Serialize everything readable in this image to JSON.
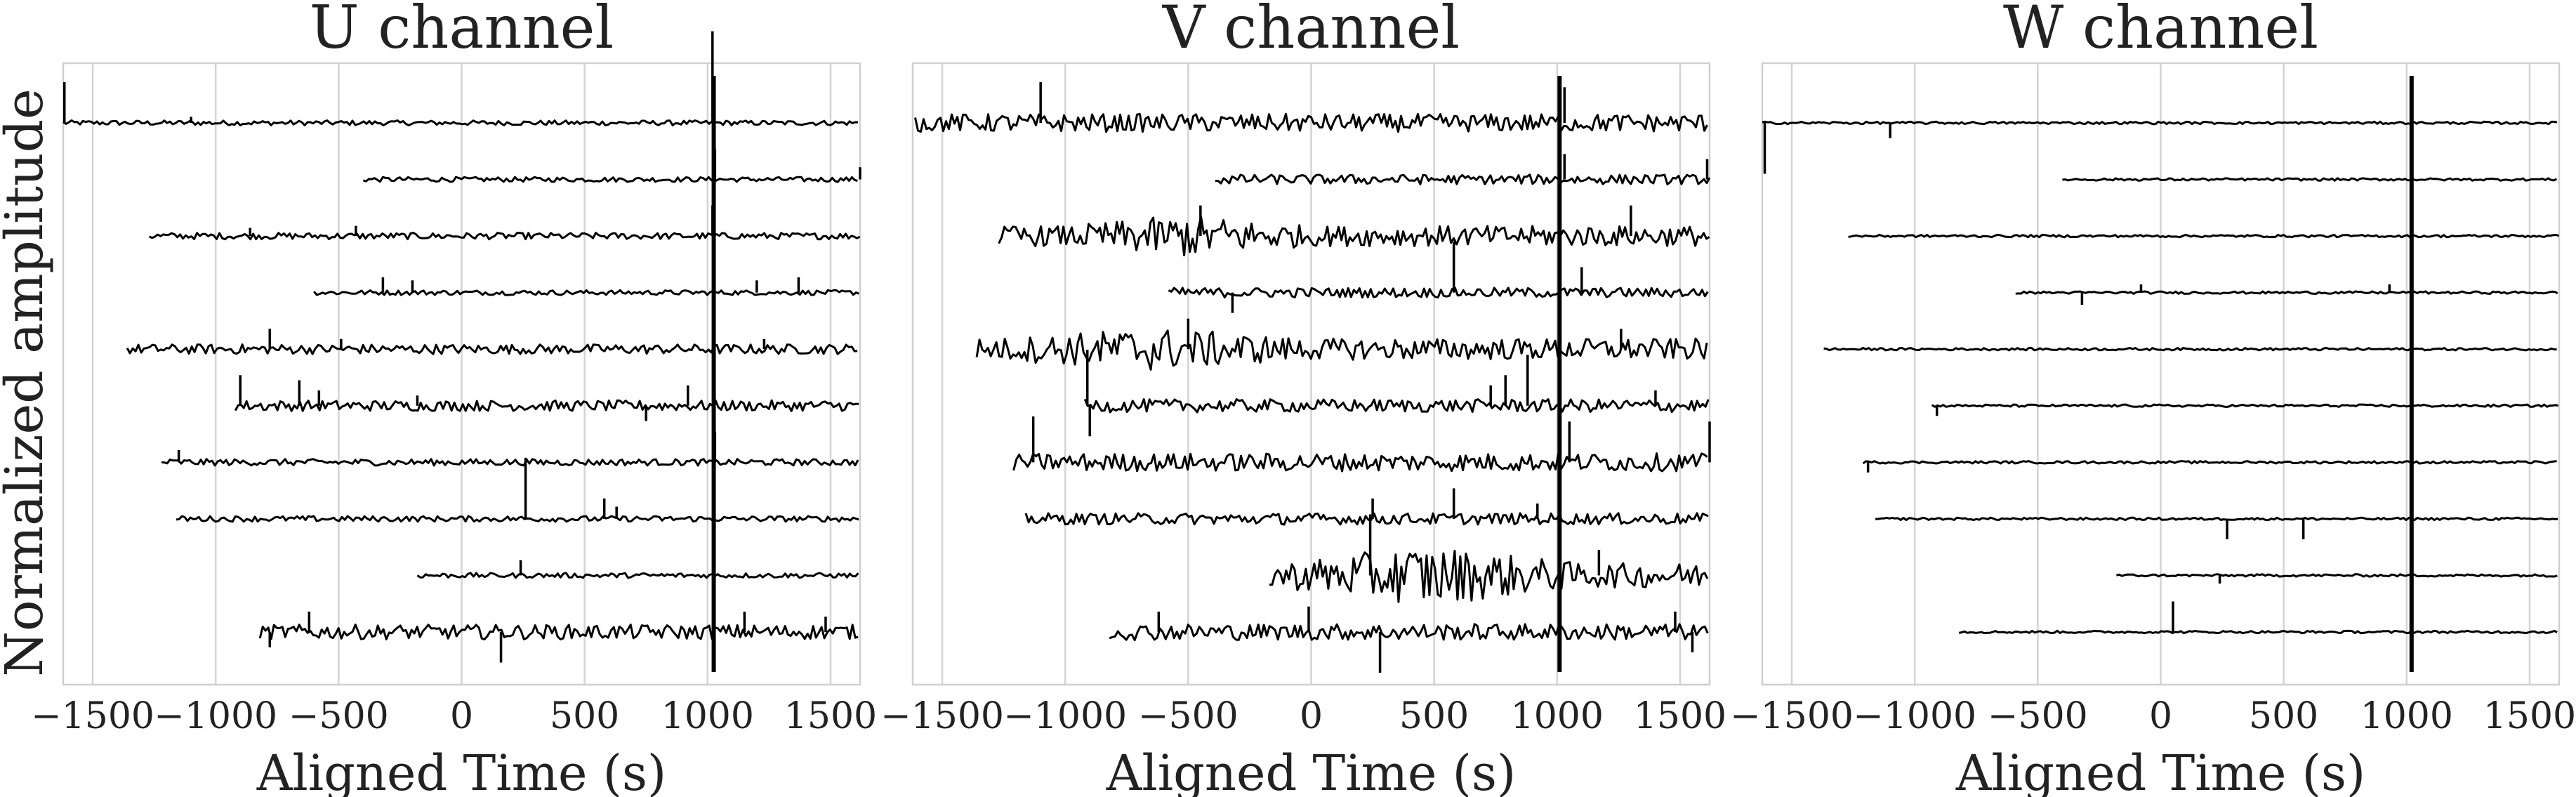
{
  "figure": {
    "ylabel": "Normalized amplitude",
    "colors": {
      "trace": "#000000",
      "grid": "#d3d3d3",
      "frame": "#cfcfcf",
      "text": "#222222"
    }
  },
  "chart_data": [
    {
      "type": "line",
      "title": "U channel",
      "xlabel": "Aligned Time (s)",
      "ylabel": "Normalized amplitude",
      "xlim": [
        -1620,
        1620
      ],
      "xticks": [
        -1500,
        -1000,
        -500,
        0,
        500,
        1000,
        1500
      ],
      "xtick_labels": [
        "−1500",
        "−1000",
        "−500",
        "0",
        "500",
        "1000",
        "1500"
      ],
      "grid": true,
      "n_traces": 10,
      "noise": 0.03,
      "traces": [
        {
          "start": -1620,
          "end": 1620,
          "noise": 0.6,
          "spikes": [
            [
              -1615,
              4
            ],
            [
              -1100,
              0.6
            ],
            [
              1020,
              9
            ]
          ]
        },
        {
          "start": -400,
          "end": 1620,
          "noise": 0.6,
          "spikes": [
            [
              1030,
              3
            ],
            [
              1620,
              1.2
            ]
          ]
        },
        {
          "start": -1270,
          "end": 1620,
          "noise": 0.8,
          "spikes": [
            [
              -860,
              0.8
            ],
            [
              -430,
              1
            ],
            [
              1020,
              3
            ]
          ]
        },
        {
          "start": -600,
          "end": 1620,
          "noise": 0.6,
          "spikes": [
            [
              -320,
              1.5
            ],
            [
              -200,
              1.2
            ],
            [
              1200,
              1.2
            ],
            [
              1370,
              1.5
            ]
          ]
        },
        {
          "start": -1360,
          "end": 1620,
          "noise": 1.2,
          "spikes": [
            [
              -780,
              2
            ],
            [
              -490,
              1
            ],
            [
              1230,
              1
            ]
          ]
        },
        {
          "start": -920,
          "end": 1620,
          "noise": 1.3,
          "spikes": [
            [
              -900,
              3
            ],
            [
              -660,
              2.5
            ],
            [
              -580,
              1.5
            ],
            [
              -180,
              1
            ],
            [
              750,
              -1.5
            ],
            [
              920,
              2
            ]
          ]
        },
        {
          "start": -1220,
          "end": 1620,
          "noise": 0.8,
          "spikes": [
            [
              -1150,
              1.2
            ],
            [
              1030,
              3
            ]
          ]
        },
        {
          "start": -1160,
          "end": 1620,
          "noise": 0.7,
          "spikes": [
            [
              260,
              6
            ],
            [
              580,
              2
            ],
            [
              630,
              1.2
            ]
          ]
        },
        {
          "start": -180,
          "end": 1620,
          "noise": 0.6,
          "spikes": [
            [
              240,
              1.5
            ]
          ]
        },
        {
          "start": -820,
          "end": 1620,
          "noise": 1.8,
          "spikes": [
            [
              -780,
              -1.5
            ],
            [
              -620,
              2
            ],
            [
              160,
              -3
            ],
            [
              1150,
              2
            ],
            [
              1480,
              1.5
            ]
          ]
        }
      ],
      "common_spike_x": 1025
    },
    {
      "type": "line",
      "title": "V channel",
      "xlabel": "Aligned Time (s)",
      "xlim": [
        -1620,
        1620
      ],
      "xticks": [
        -1500,
        -1000,
        -500,
        0,
        500,
        1000,
        1500
      ],
      "xtick_labels": [
        "−1500",
        "−1000",
        "−500",
        "0",
        "500",
        "1000",
        "1500"
      ],
      "grid": true,
      "n_traces": 10,
      "noise": 0.08,
      "traces": [
        {
          "start": -1610,
          "end": 1620,
          "noise": 2.2,
          "spikes": [
            [
              -1100,
              4
            ],
            [
              1030,
              3.5
            ]
          ]
        },
        {
          "start": -390,
          "end": 1620,
          "noise": 1.2,
          "spikes": [
            [
              1030,
              2.5
            ],
            [
              1610,
              2
            ]
          ]
        },
        {
          "start": -1270,
          "end": 1620,
          "noise": 2.5,
          "burst": [
            -1000,
            0,
            2.8
          ],
          "spikes": [
            [
              -450,
              3
            ],
            [
              1300,
              3
            ]
          ]
        },
        {
          "start": -580,
          "end": 1620,
          "noise": 1.2,
          "spikes": [
            [
              -320,
              -2
            ],
            [
              580,
              5
            ],
            [
              1100,
              2.5
            ]
          ]
        },
        {
          "start": -1360,
          "end": 1620,
          "noise": 2.6,
          "burst": [
            -1300,
            0,
            2.8
          ],
          "spikes": [
            [
              -500,
              3
            ],
            [
              1260,
              2
            ]
          ]
        },
        {
          "start": -920,
          "end": 1620,
          "noise": 1.6,
          "spikes": [
            [
              -910,
              5.5
            ],
            [
              -900,
              -3
            ],
            [
              730,
              2
            ],
            [
              790,
              3
            ],
            [
              880,
              5
            ],
            [
              1400,
              1.5
            ]
          ]
        },
        {
          "start": -1210,
          "end": 1620,
          "noise": 2.2,
          "spikes": [
            [
              -1130,
              4.5
            ],
            [
              1050,
              4
            ],
            [
              1620,
              4
            ]
          ]
        },
        {
          "start": -1160,
          "end": 1620,
          "noise": 1.4,
          "spikes": [
            [
              250,
              2
            ],
            [
              580,
              3
            ],
            [
              920,
              1.5
            ]
          ]
        },
        {
          "start": -170,
          "end": 1620,
          "noise": 3.0,
          "burst": [
            -150,
            1100,
            4.5
          ],
          "spikes": [
            [
              240,
              6
            ],
            [
              1170,
              2.5
            ]
          ]
        },
        {
          "start": -820,
          "end": 1620,
          "noise": 2.0,
          "spikes": [
            [
              -620,
              2
            ],
            [
              -10,
              2.5
            ],
            [
              280,
              -4
            ],
            [
              1480,
              2
            ],
            [
              1550,
              -2
            ]
          ]
        }
      ],
      "common_spike_x": 1010
    },
    {
      "type": "line",
      "title": "W channel",
      "xlabel": "Aligned Time (s)",
      "xlim": [
        -1620,
        1620
      ],
      "xticks": [
        -1500,
        -1000,
        -500,
        0,
        500,
        1000,
        1500
      ],
      "xtick_labels": [
        "−1500",
        "−1000",
        "−500",
        "0",
        "500",
        "1000",
        "1500"
      ],
      "grid": true,
      "n_traces": 10,
      "noise": 0.015,
      "traces": [
        {
          "start": -1620,
          "end": 1620,
          "noise": 0.3,
          "spikes": [
            [
              -1610,
              -5
            ],
            [
              -1100,
              -1.5
            ],
            [
              1020,
              2
            ]
          ]
        },
        {
          "start": -400,
          "end": 1620,
          "noise": 0.3,
          "spikes": []
        },
        {
          "start": -1270,
          "end": 1620,
          "noise": 0.3,
          "spikes": []
        },
        {
          "start": -590,
          "end": 1620,
          "noise": 0.3,
          "spikes": [
            [
              -320,
              -1.2
            ],
            [
              -80,
              0.8
            ],
            [
              930,
              0.8
            ]
          ]
        },
        {
          "start": -1370,
          "end": 1620,
          "noise": 0.3,
          "spikes": []
        },
        {
          "start": -930,
          "end": 1620,
          "noise": 0.3,
          "spikes": [
            [
              -910,
              -1
            ]
          ]
        },
        {
          "start": -1210,
          "end": 1620,
          "noise": 0.3,
          "spikes": [
            [
              -1190,
              -1
            ]
          ]
        },
        {
          "start": -1160,
          "end": 1620,
          "noise": 0.3,
          "spikes": [
            [
              270,
              -2
            ],
            [
              580,
              -2
            ]
          ]
        },
        {
          "start": -180,
          "end": 1620,
          "noise": 0.3,
          "spikes": [
            [
              240,
              -0.8
            ]
          ]
        },
        {
          "start": -820,
          "end": 1620,
          "noise": 0.3,
          "spikes": [
            [
              50,
              3
            ],
            [
              1020,
              1
            ]
          ]
        }
      ],
      "common_spike_x": 1020
    }
  ]
}
